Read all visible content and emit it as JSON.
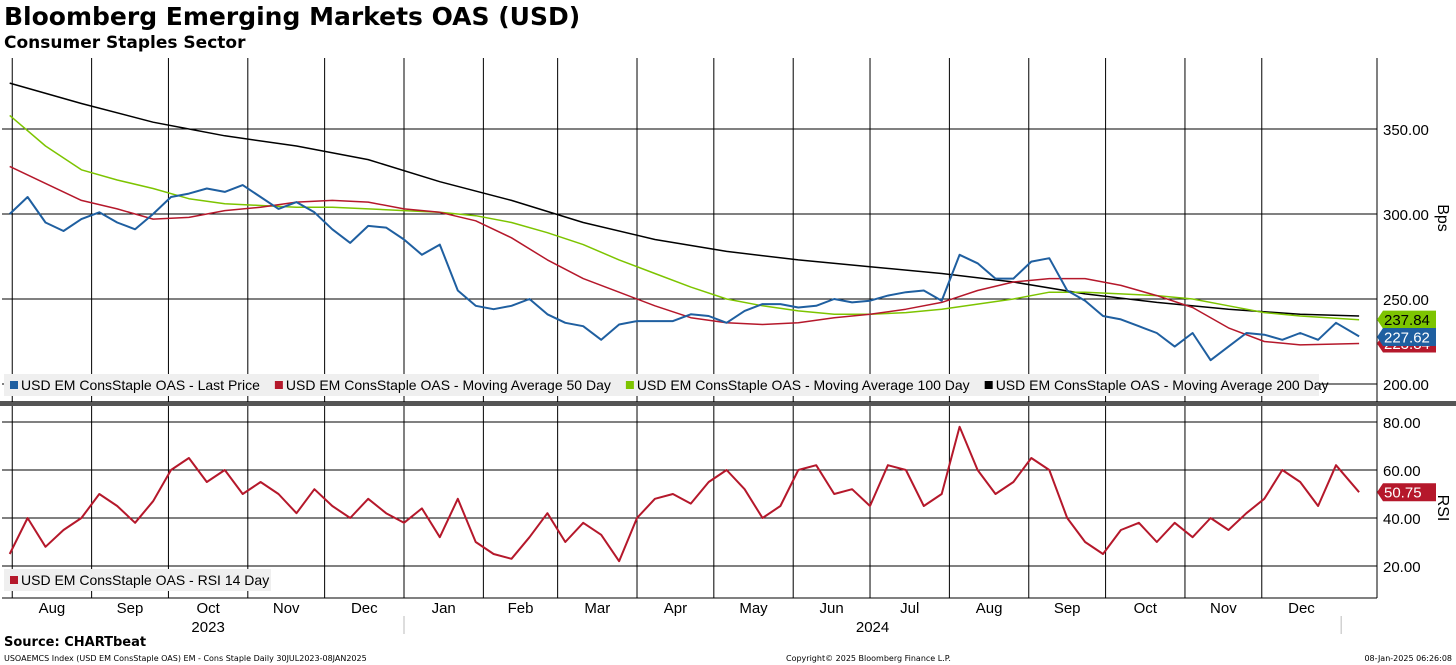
{
  "header": {
    "title": "Bloomberg Emerging Markets OAS (USD)",
    "subtitle": "Consumer Staples Sector"
  },
  "footer": {
    "source": "Source: CHARTbeat",
    "index_line": "USOAEMCS Index (USD EM ConsStaple OAS) EM - Cons Staple  Daily 30JUL2023-08JAN2025",
    "copyright": "Copyright© 2025 Bloomberg Finance L.P.",
    "timestamp": "08-Jan-2025 06:26:08"
  },
  "chart_data": [
    {
      "type": "line",
      "ylabel": "Bps",
      "ylim": [
        190,
        380
      ],
      "yticks": [
        200,
        250,
        300,
        350
      ],
      "ytick_labels": [
        "200.00",
        "250.00",
        "300.00",
        "350.00"
      ],
      "x_months": [
        "Aug",
        "Sep",
        "Oct",
        "Nov",
        "Dec",
        "Jan",
        "Feb",
        "Mar",
        "Apr",
        "May",
        "Jun",
        "Jul",
        "Aug",
        "Sep",
        "Oct",
        "Nov",
        "Dec"
      ],
      "x_years": [
        "2023",
        "2024"
      ],
      "grid": true,
      "legend_position": "bottom-left",
      "series": [
        {
          "name": "USD EM ConsStaple OAS - Last Price",
          "color": "#1f5fa0",
          "last_label": "227.62",
          "x": [
            "2023-07-31",
            "2023-08-07",
            "2023-08-14",
            "2023-08-21",
            "2023-08-28",
            "2023-09-04",
            "2023-09-11",
            "2023-09-18",
            "2023-09-25",
            "2023-10-02",
            "2023-10-09",
            "2023-10-16",
            "2023-10-23",
            "2023-10-30",
            "2023-11-06",
            "2023-11-13",
            "2023-11-20",
            "2023-11-27",
            "2023-12-04",
            "2023-12-11",
            "2023-12-18",
            "2023-12-25",
            "2024-01-01",
            "2024-01-08",
            "2024-01-15",
            "2024-01-22",
            "2024-01-29",
            "2024-02-05",
            "2024-02-12",
            "2024-02-19",
            "2024-02-26",
            "2024-03-04",
            "2024-03-11",
            "2024-03-18",
            "2024-03-25",
            "2024-04-01",
            "2024-04-08",
            "2024-04-15",
            "2024-04-22",
            "2024-04-29",
            "2024-05-06",
            "2024-05-13",
            "2024-05-20",
            "2024-05-27",
            "2024-06-03",
            "2024-06-10",
            "2024-06-17",
            "2024-06-24",
            "2024-07-01",
            "2024-07-08",
            "2024-07-15",
            "2024-07-22",
            "2024-07-29",
            "2024-08-05",
            "2024-08-12",
            "2024-08-19",
            "2024-08-26",
            "2024-09-02",
            "2024-09-09",
            "2024-09-16",
            "2024-09-23",
            "2024-09-30",
            "2024-10-07",
            "2024-10-14",
            "2024-10-21",
            "2024-10-28",
            "2024-11-04",
            "2024-11-11",
            "2024-11-18",
            "2024-11-25",
            "2024-12-02",
            "2024-12-09",
            "2024-12-16",
            "2024-12-23",
            "2024-12-30",
            "2025-01-08"
          ],
          "values": [
            300,
            310,
            295,
            290,
            297,
            301,
            295,
            291,
            300,
            310,
            312,
            315,
            313,
            317,
            310,
            303,
            307,
            301,
            291,
            283,
            293,
            292,
            285,
            276,
            282,
            255,
            246,
            244,
            246,
            250,
            241,
            236,
            234,
            226,
            235,
            237,
            237,
            237,
            241,
            240,
            236,
            243,
            247,
            247,
            245,
            246,
            250,
            248,
            249,
            252,
            254,
            255,
            249,
            276,
            271,
            262,
            262,
            272,
            274,
            255,
            249,
            240,
            238,
            234,
            230,
            222,
            230,
            214,
            222,
            230,
            229,
            226,
            230,
            226,
            236,
            228
          ]
        },
        {
          "name": "USD EM ConsStaple OAS - Moving Average 50 Day",
          "color": "#b5182b",
          "last_label": "223.84",
          "x": [
            "2023-07-31",
            "2023-08-14",
            "2023-08-28",
            "2023-09-11",
            "2023-09-25",
            "2023-10-09",
            "2023-10-23",
            "2023-11-06",
            "2023-11-20",
            "2023-12-04",
            "2023-12-18",
            "2024-01-01",
            "2024-01-15",
            "2024-01-29",
            "2024-02-12",
            "2024-02-26",
            "2024-03-11",
            "2024-03-25",
            "2024-04-08",
            "2024-04-22",
            "2024-05-06",
            "2024-05-20",
            "2024-06-03",
            "2024-06-17",
            "2024-07-01",
            "2024-07-15",
            "2024-07-29",
            "2024-08-12",
            "2024-08-26",
            "2024-09-09",
            "2024-09-23",
            "2024-10-07",
            "2024-10-21",
            "2024-11-04",
            "2024-11-18",
            "2024-12-02",
            "2024-12-16",
            "2025-01-08"
          ],
          "values": [
            328,
            318,
            308,
            303,
            297,
            298,
            302,
            304,
            307,
            308,
            307,
            303,
            301,
            296,
            286,
            273,
            262,
            254,
            246,
            239,
            236,
            235,
            236,
            239,
            241,
            244,
            248,
            255,
            260,
            262,
            262,
            258,
            252,
            245,
            233,
            225,
            223,
            223.84
          ]
        },
        {
          "name": "USD EM ConsStaple OAS - Moving Average 100 Day",
          "color": "#7dc400",
          "last_label": "237.84",
          "x": [
            "2023-07-31",
            "2023-08-14",
            "2023-08-28",
            "2023-09-11",
            "2023-09-25",
            "2023-10-09",
            "2023-10-23",
            "2023-11-06",
            "2023-11-20",
            "2023-12-04",
            "2023-12-18",
            "2024-01-01",
            "2024-01-15",
            "2024-01-29",
            "2024-02-12",
            "2024-02-26",
            "2024-03-11",
            "2024-03-25",
            "2024-04-08",
            "2024-04-22",
            "2024-05-06",
            "2024-05-20",
            "2024-06-03",
            "2024-06-17",
            "2024-07-01",
            "2024-07-15",
            "2024-07-29",
            "2024-08-12",
            "2024-08-26",
            "2024-09-09",
            "2024-09-23",
            "2024-10-07",
            "2024-10-21",
            "2024-11-04",
            "2024-11-18",
            "2024-12-02",
            "2024-12-16",
            "2025-01-08"
          ],
          "values": [
            358,
            340,
            326,
            320,
            315,
            309,
            306,
            305,
            304,
            304,
            303,
            302,
            301,
            299,
            295,
            289,
            282,
            273,
            265,
            257,
            250,
            246,
            243,
            241,
            241,
            242,
            244,
            247,
            250,
            254,
            254,
            253,
            252,
            250,
            246,
            242,
            240,
            237.84
          ]
        },
        {
          "name": "USD EM ConsStaple OAS - Moving Average 200 Day",
          "color": "#000000",
          "last_label": "240",
          "x": [
            "2023-07-31",
            "2023-08-28",
            "2023-09-25",
            "2023-10-23",
            "2023-11-20",
            "2023-12-18",
            "2024-01-15",
            "2024-02-12",
            "2024-03-11",
            "2024-04-08",
            "2024-05-06",
            "2024-06-03",
            "2024-07-01",
            "2024-07-29",
            "2024-08-26",
            "2024-09-23",
            "2024-10-21",
            "2024-11-18",
            "2024-12-16",
            "2025-01-08"
          ],
          "values": [
            377,
            365,
            354,
            346,
            340,
            332,
            319,
            308,
            295,
            285,
            278,
            273,
            269,
            265,
            260,
            253,
            248,
            244,
            241,
            240
          ]
        }
      ]
    },
    {
      "type": "line",
      "ylabel": "RSI",
      "ylim": [
        12,
        88
      ],
      "yticks": [
        20,
        40,
        60,
        80
      ],
      "ytick_labels": [
        "20.00",
        "40.00",
        "60.00",
        "80.00"
      ],
      "grid": true,
      "legend_position": "bottom-left",
      "series": [
        {
          "name": "USD EM ConsStaple OAS - RSI 14 Day",
          "color": "#b5182b",
          "last_label": "50.75",
          "x": [
            "2023-07-31",
            "2023-08-07",
            "2023-08-14",
            "2023-08-21",
            "2023-08-28",
            "2023-09-04",
            "2023-09-11",
            "2023-09-18",
            "2023-09-25",
            "2023-10-02",
            "2023-10-09",
            "2023-10-16",
            "2023-10-23",
            "2023-10-30",
            "2023-11-06",
            "2023-11-13",
            "2023-11-20",
            "2023-11-27",
            "2023-12-04",
            "2023-12-11",
            "2023-12-18",
            "2023-12-25",
            "2024-01-01",
            "2024-01-08",
            "2024-01-15",
            "2024-01-22",
            "2024-01-29",
            "2024-02-05",
            "2024-02-12",
            "2024-02-19",
            "2024-02-26",
            "2024-03-04",
            "2024-03-11",
            "2024-03-18",
            "2024-03-25",
            "2024-04-01",
            "2024-04-08",
            "2024-04-15",
            "2024-04-22",
            "2024-04-29",
            "2024-05-06",
            "2024-05-13",
            "2024-05-20",
            "2024-05-27",
            "2024-06-03",
            "2024-06-10",
            "2024-06-17",
            "2024-06-24",
            "2024-07-01",
            "2024-07-08",
            "2024-07-15",
            "2024-07-22",
            "2024-07-29",
            "2024-08-05",
            "2024-08-12",
            "2024-08-19",
            "2024-08-26",
            "2024-09-02",
            "2024-09-09",
            "2024-09-16",
            "2024-09-23",
            "2024-09-30",
            "2024-10-07",
            "2024-10-14",
            "2024-10-21",
            "2024-10-28",
            "2024-11-04",
            "2024-11-11",
            "2024-11-18",
            "2024-11-25",
            "2024-12-02",
            "2024-12-09",
            "2024-12-16",
            "2024-12-23",
            "2024-12-30",
            "2025-01-08"
          ],
          "values": [
            25,
            40,
            28,
            35,
            40,
            50,
            45,
            38,
            47,
            60,
            65,
            55,
            60,
            50,
            55,
            50,
            42,
            52,
            45,
            40,
            48,
            42,
            38,
            44,
            32,
            48,
            30,
            25,
            23,
            32,
            42,
            30,
            38,
            33,
            22,
            40,
            48,
            50,
            46,
            55,
            60,
            52,
            40,
            45,
            60,
            62,
            50,
            52,
            45,
            62,
            60,
            45,
            50,
            78,
            60,
            50,
            55,
            65,
            60,
            40,
            30,
            25,
            35,
            38,
            30,
            38,
            32,
            40,
            35,
            42,
            48,
            60,
            55,
            45,
            62,
            50.75
          ]
        }
      ]
    }
  ]
}
